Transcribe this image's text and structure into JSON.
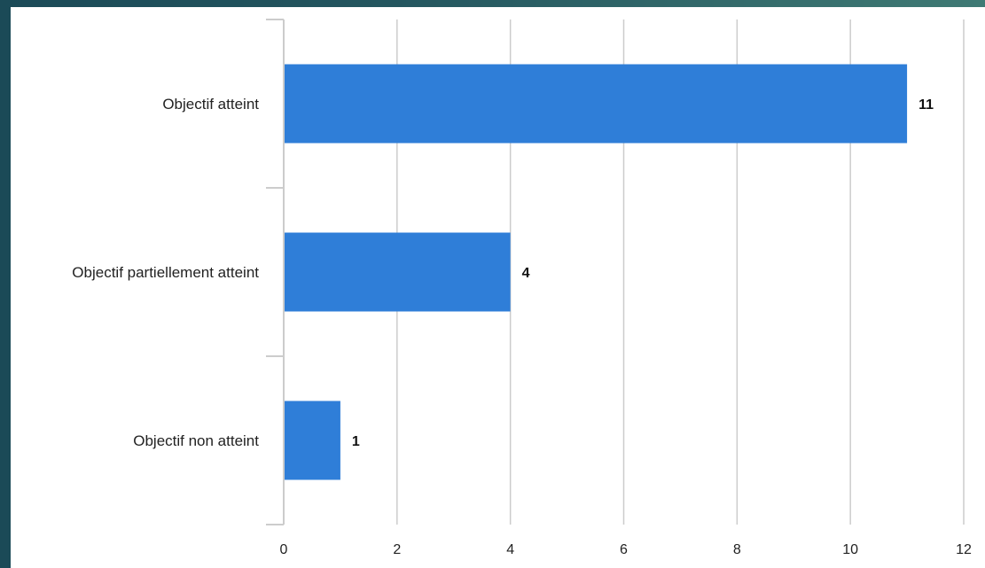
{
  "chart_data": {
    "type": "bar",
    "orientation": "horizontal",
    "categories": [
      "Objectif atteint",
      "Objectif partiellement atteint",
      "Objectif non atteint"
    ],
    "values": [
      11,
      4,
      1
    ],
    "data_labels": [
      "11",
      "4",
      "1"
    ],
    "xlim": [
      0,
      12
    ],
    "xticks": [
      0,
      2,
      4,
      6,
      8,
      10,
      12
    ],
    "xtick_labels": [
      "0",
      "2",
      "4",
      "6",
      "8",
      "10",
      "12"
    ],
    "grid": true,
    "legend": false,
    "bar_color": "#2f7ed8"
  }
}
